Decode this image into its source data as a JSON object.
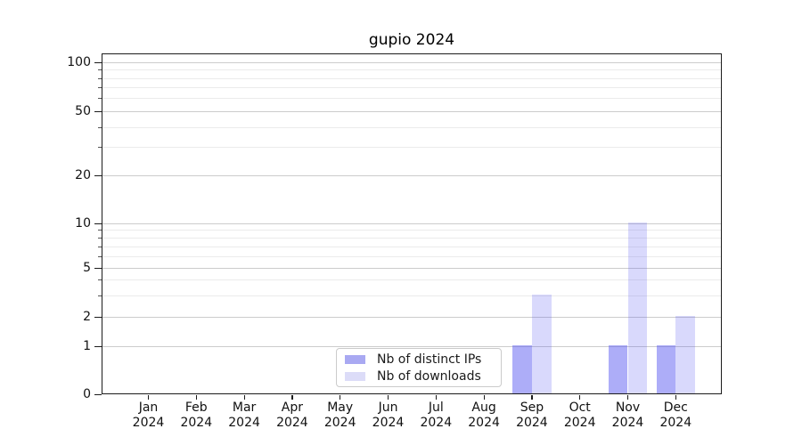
{
  "chart_data": {
    "type": "bar",
    "title": "gupio 2024",
    "categories": [
      "Jan",
      "Feb",
      "Mar",
      "Apr",
      "May",
      "Jun",
      "Jul",
      "Aug",
      "Sep",
      "Oct",
      "Nov",
      "Dec"
    ],
    "category_year": "2024",
    "series": [
      {
        "name": "Nb of distinct IPs",
        "color": "#a9a9f2",
        "bar_fill": "rgba(80,80,240,0.47)",
        "values": [
          0,
          0,
          0,
          0,
          0,
          0,
          0,
          0,
          1,
          0,
          1,
          1
        ]
      },
      {
        "name": "Nb of downloads",
        "color": "#dcdcf8",
        "bar_fill": "rgba(80,80,240,0.22)",
        "values": [
          0,
          0,
          0,
          0,
          0,
          0,
          0,
          0,
          3,
          0,
          10,
          2
        ]
      }
    ],
    "yscale": "log",
    "ylim": [
      0,
      130
    ],
    "y_major_ticks": [
      0,
      1,
      2,
      5,
      10,
      20,
      50,
      100
    ],
    "y_minor_ticks": [
      3,
      4,
      6,
      7,
      8,
      9,
      30,
      40,
      60,
      70,
      80,
      90
    ],
    "grid": true,
    "legend_position": "lower center"
  },
  "colors": {
    "grid_major": "#cccccc",
    "grid_minor": "#ebebeb",
    "axis_frame": "#1c1c1c"
  }
}
